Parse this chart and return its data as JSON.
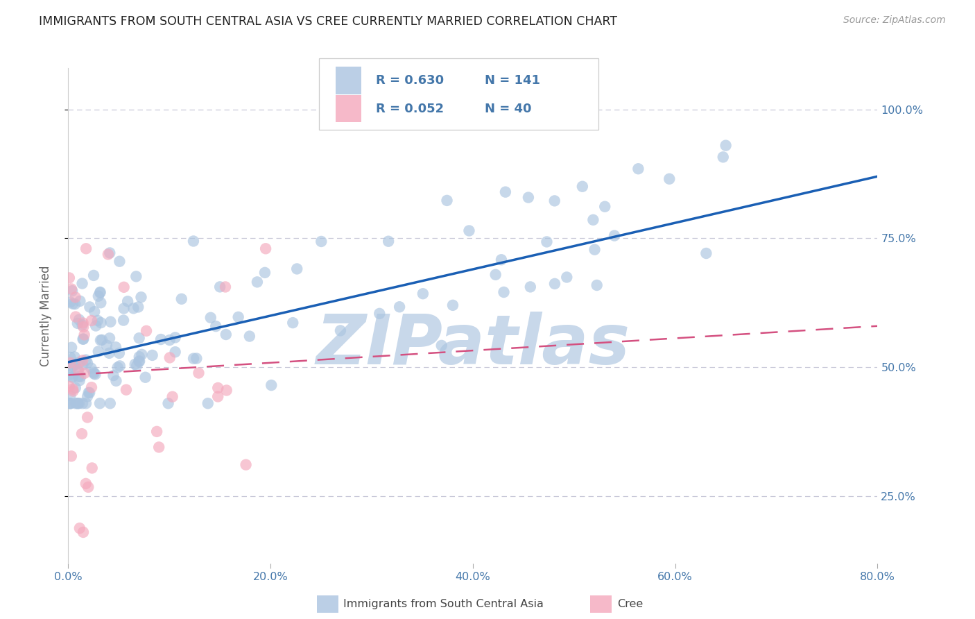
{
  "title": "IMMIGRANTS FROM SOUTH CENTRAL ASIA VS CREE CURRENTLY MARRIED CORRELATION CHART",
  "source": "Source: ZipAtlas.com",
  "ylabel": "Currently Married",
  "legend_label_blue": "Immigrants from South Central Asia",
  "legend_label_pink": "Cree",
  "legend_r_blue": "R = 0.630",
  "legend_n_blue": "N = 141",
  "legend_r_pink": "R = 0.052",
  "legend_n_pink": "N = 40",
  "x_tick_labels": [
    "0.0%",
    "20.0%",
    "40.0%",
    "60.0%",
    "80.0%"
  ],
  "x_tick_values": [
    0.0,
    20.0,
    40.0,
    60.0,
    80.0
  ],
  "y_tick_labels": [
    "25.0%",
    "50.0%",
    "75.0%",
    "100.0%"
  ],
  "y_tick_values": [
    25.0,
    50.0,
    75.0,
    100.0
  ],
  "xlim": [
    0.0,
    80.0
  ],
  "ylim": [
    12.0,
    108.0
  ],
  "blue_color": "#aac4e0",
  "pink_color": "#f4a8bc",
  "trend_blue_color": "#1a5fb4",
  "trend_pink_color": "#d45080",
  "bg_color": "#ffffff",
  "grid_color": "#c8c8d8",
  "axis_label_color": "#4477aa",
  "title_color": "#222222",
  "watermark_color": "#c8d8ea",
  "watermark_text": "ZIPatlas",
  "trend_blue_x0": 0.0,
  "trend_blue_x1": 80.0,
  "trend_blue_y0": 51.0,
  "trend_blue_y1": 87.0,
  "trend_pink_x0": 0.0,
  "trend_pink_x1": 80.0,
  "trend_pink_y0": 48.5,
  "trend_pink_y1": 58.0
}
